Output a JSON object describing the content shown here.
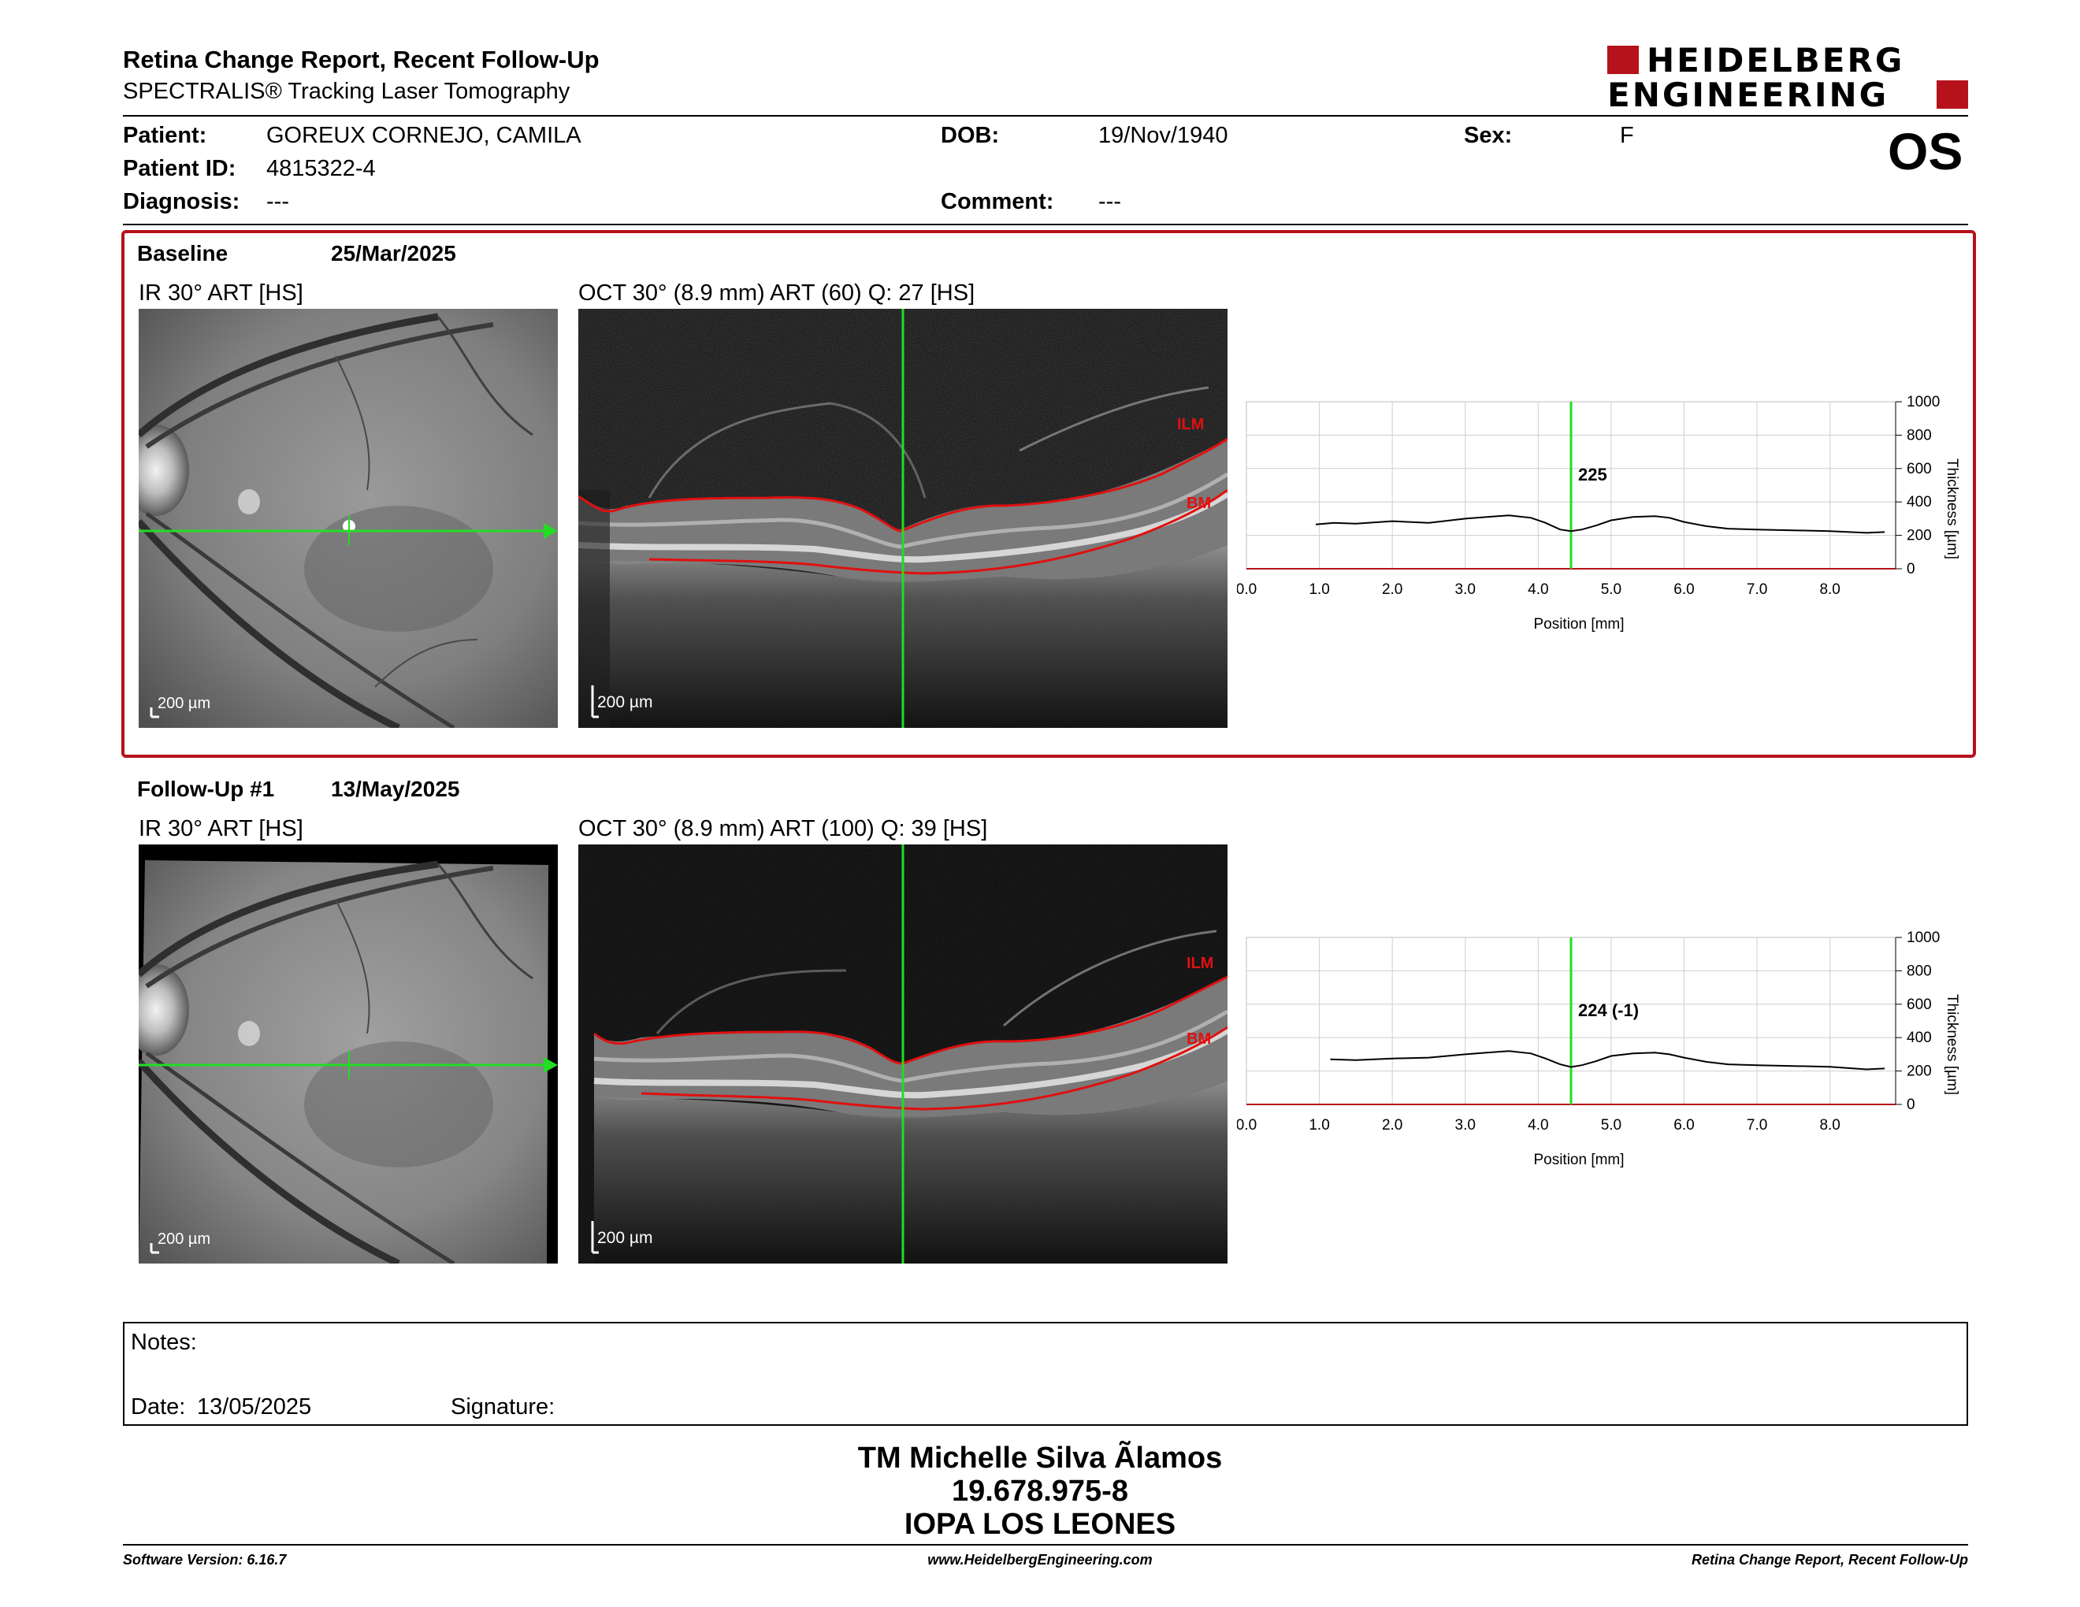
{
  "header": {
    "title": "Retina Change Report, Recent Follow-Up",
    "subtitle": "SPECTRALIS® Tracking Laser Tomography",
    "logo_line1": "HEIDELBERG",
    "logo_line2": "ENGINEERING",
    "eye": "OS"
  },
  "patient": {
    "name_label": "Patient:",
    "name": "GOREUX CORNEJO, CAMILA",
    "id_label": "Patient ID:",
    "id": "4815322-4",
    "diagnosis_label": "Diagnosis:",
    "diagnosis": "---",
    "dob_label": "DOB:",
    "dob": "19/Nov/1940",
    "comment_label": "Comment:",
    "comment": "---",
    "sex_label": "Sex:",
    "sex": "F"
  },
  "baseline": {
    "label": "Baseline",
    "date": "25/Mar/2025",
    "ir_caption": "IR 30° ART [HS]",
    "oct_caption": "OCT 30° (8.9 mm) ART (60) Q: 27 [HS]",
    "scale": "200 µm",
    "ilm": "ILM",
    "bm": "BM"
  },
  "followup": {
    "label": "Follow-Up #1",
    "date": "13/May/2025",
    "ir_caption": "IR 30° ART [HS]",
    "oct_caption": "OCT 30° (8.9 mm) ART (100) Q: 39 [HS]",
    "scale": "200 µm",
    "ilm": "ILM",
    "bm": "BM"
  },
  "chart_data": [
    {
      "type": "line",
      "xlabel": "Position [mm]",
      "ylabel": "Thickness [µm]",
      "xlim": [
        0,
        8.9
      ],
      "ylim": [
        0,
        1000
      ],
      "x_ticks": [
        "0.0",
        "1.0",
        "2.0",
        "3.0",
        "4.0",
        "5.0",
        "6.0",
        "7.0",
        "8.0"
      ],
      "y_ticks": [
        "0",
        "200",
        "400",
        "600",
        "800",
        "1000"
      ],
      "grid": true,
      "cursor_x": 4.45,
      "cursor_label": "225",
      "x": [
        0.95,
        1.2,
        1.5,
        2.0,
        2.5,
        3.0,
        3.3,
        3.6,
        3.9,
        4.1,
        4.3,
        4.45,
        4.6,
        4.8,
        5.0,
        5.3,
        5.6,
        5.8,
        6.0,
        6.3,
        6.6,
        7.0,
        7.5,
        8.0,
        8.5,
        8.75
      ],
      "y": [
        265,
        275,
        270,
        285,
        275,
        300,
        310,
        320,
        305,
        275,
        235,
        225,
        235,
        260,
        290,
        310,
        315,
        305,
        280,
        255,
        240,
        235,
        230,
        225,
        215,
        220
      ]
    },
    {
      "type": "line",
      "xlabel": "Position [mm]",
      "ylabel": "Thickness [µm]",
      "xlim": [
        0,
        8.9
      ],
      "ylim": [
        0,
        1000
      ],
      "x_ticks": [
        "0.0",
        "1.0",
        "2.0",
        "3.0",
        "4.0",
        "5.0",
        "6.0",
        "7.0",
        "8.0"
      ],
      "y_ticks": [
        "0",
        "200",
        "400",
        "600",
        "800",
        "1000"
      ],
      "grid": true,
      "cursor_x": 4.45,
      "cursor_label": "224 (-1)",
      "x": [
        1.15,
        1.5,
        2.0,
        2.5,
        3.0,
        3.3,
        3.6,
        3.9,
        4.1,
        4.3,
        4.45,
        4.6,
        4.8,
        5.0,
        5.3,
        5.6,
        5.8,
        6.0,
        6.3,
        6.6,
        7.0,
        7.5,
        8.0,
        8.5,
        8.75
      ],
      "y": [
        270,
        265,
        275,
        280,
        300,
        310,
        320,
        305,
        275,
        240,
        224,
        235,
        260,
        290,
        305,
        310,
        300,
        280,
        255,
        240,
        235,
        230,
        225,
        210,
        215
      ]
    }
  ],
  "notes": {
    "label": "Notes:",
    "date_label": "Date:",
    "date": "13/05/2025",
    "signature_label": "Signature:"
  },
  "signer": {
    "name": "TM Michelle Silva Ãlamos",
    "rut": "19.678.975-8",
    "org": "IOPA LOS LEONES"
  },
  "footer": {
    "software": "Software Version: 6.16.7",
    "website": "www.HeidelbergEngineering.com",
    "report": "Retina Change Report, Recent Follow-Up"
  },
  "colors": {
    "accent_red": "#b5121b",
    "scan_green": "#22dd22",
    "segment_red": "#e01010"
  }
}
